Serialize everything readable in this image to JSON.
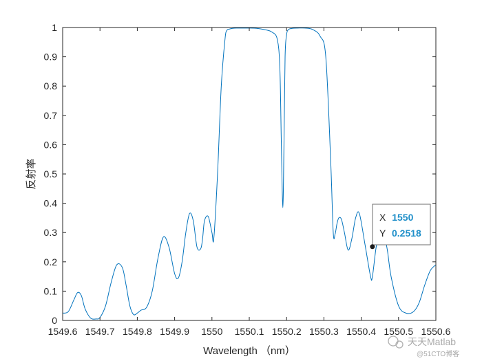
{
  "chart_data": {
    "type": "line",
    "xlabel": "Wavelength （nm）",
    "ylabel": "反射率",
    "xlim": [
      1549.6,
      1550.6
    ],
    "ylim": [
      0,
      1
    ],
    "x_ticks": [
      "1549.6",
      "1549.7",
      "1549.8",
      "1549.9",
      "1550",
      "1550.1",
      "1550.2",
      "1550.3",
      "1550.4",
      "1550.5",
      "1550.6"
    ],
    "y_ticks": [
      "0",
      "0.1",
      "0.2",
      "0.3",
      "0.4",
      "0.5",
      "0.6",
      "0.7",
      "0.8",
      "0.9",
      "1"
    ],
    "grid": false,
    "line_color": "#0072BD",
    "series": [
      {
        "x": [
          1549.6,
          1549.615,
          1549.63,
          1549.64,
          1549.65,
          1549.66,
          1549.675,
          1549.69,
          1549.7,
          1549.715,
          1549.73,
          1549.745,
          1549.76,
          1549.77,
          1549.78,
          1549.79,
          1549.8,
          1549.81,
          1549.825,
          1549.84,
          1549.855,
          1549.87,
          1549.885,
          1549.9,
          1549.91,
          1549.92,
          1549.93,
          1549.94,
          1549.95,
          1549.96,
          1549.97,
          1549.975,
          1549.98,
          1549.99,
          1550.0,
          1550.005,
          1550.015,
          1550.025,
          1550.035,
          1550.04,
          1550.048,
          1550.055,
          1550.065,
          1550.08,
          1550.1,
          1550.12,
          1550.14,
          1550.16,
          1550.175,
          1550.182,
          1550.186,
          1550.19,
          1550.193,
          1550.196,
          1550.2,
          1550.205,
          1550.215,
          1550.23,
          1550.25,
          1550.27,
          1550.29,
          1550.305,
          1550.318,
          1550.325,
          1550.33,
          1550.335,
          1550.34,
          1550.347,
          1550.355,
          1550.365,
          1550.375,
          1550.385,
          1550.395,
          1550.41,
          1550.425,
          1550.43,
          1550.44,
          1550.45,
          1550.46,
          1550.47,
          1550.48,
          1550.5,
          1550.52,
          1550.54,
          1550.555,
          1550.57,
          1550.585,
          1550.6
        ],
        "y": [
          0.025,
          0.03,
          0.07,
          0.095,
          0.085,
          0.04,
          0.008,
          0.005,
          0.01,
          0.05,
          0.13,
          0.19,
          0.18,
          0.12,
          0.05,
          0.02,
          0.025,
          0.035,
          0.045,
          0.1,
          0.21,
          0.285,
          0.25,
          0.16,
          0.145,
          0.2,
          0.3,
          0.365,
          0.34,
          0.25,
          0.245,
          0.28,
          0.34,
          0.355,
          0.3,
          0.28,
          0.5,
          0.8,
          0.96,
          0.99,
          0.995,
          0.997,
          0.998,
          0.998,
          0.998,
          0.997,
          0.993,
          0.985,
          0.96,
          0.86,
          0.6,
          0.385,
          0.6,
          0.9,
          0.975,
          0.993,
          0.997,
          0.998,
          0.998,
          0.993,
          0.97,
          0.9,
          0.55,
          0.3,
          0.295,
          0.33,
          0.35,
          0.345,
          0.3,
          0.24,
          0.28,
          0.35,
          0.365,
          0.26,
          0.15,
          0.15,
          0.25,
          0.3,
          0.3,
          0.24,
          0.15,
          0.05,
          0.025,
          0.03,
          0.06,
          0.12,
          0.17,
          0.19
        ]
      }
    ],
    "datatip": {
      "x_label": "X",
      "x_value": "1550",
      "y_label": "Y",
      "y_value": "0.2518",
      "x": 1550.43,
      "y": 0.2518
    }
  },
  "watermark": {
    "line1": "天天Matlab",
    "line2": "@51CTO博客"
  }
}
